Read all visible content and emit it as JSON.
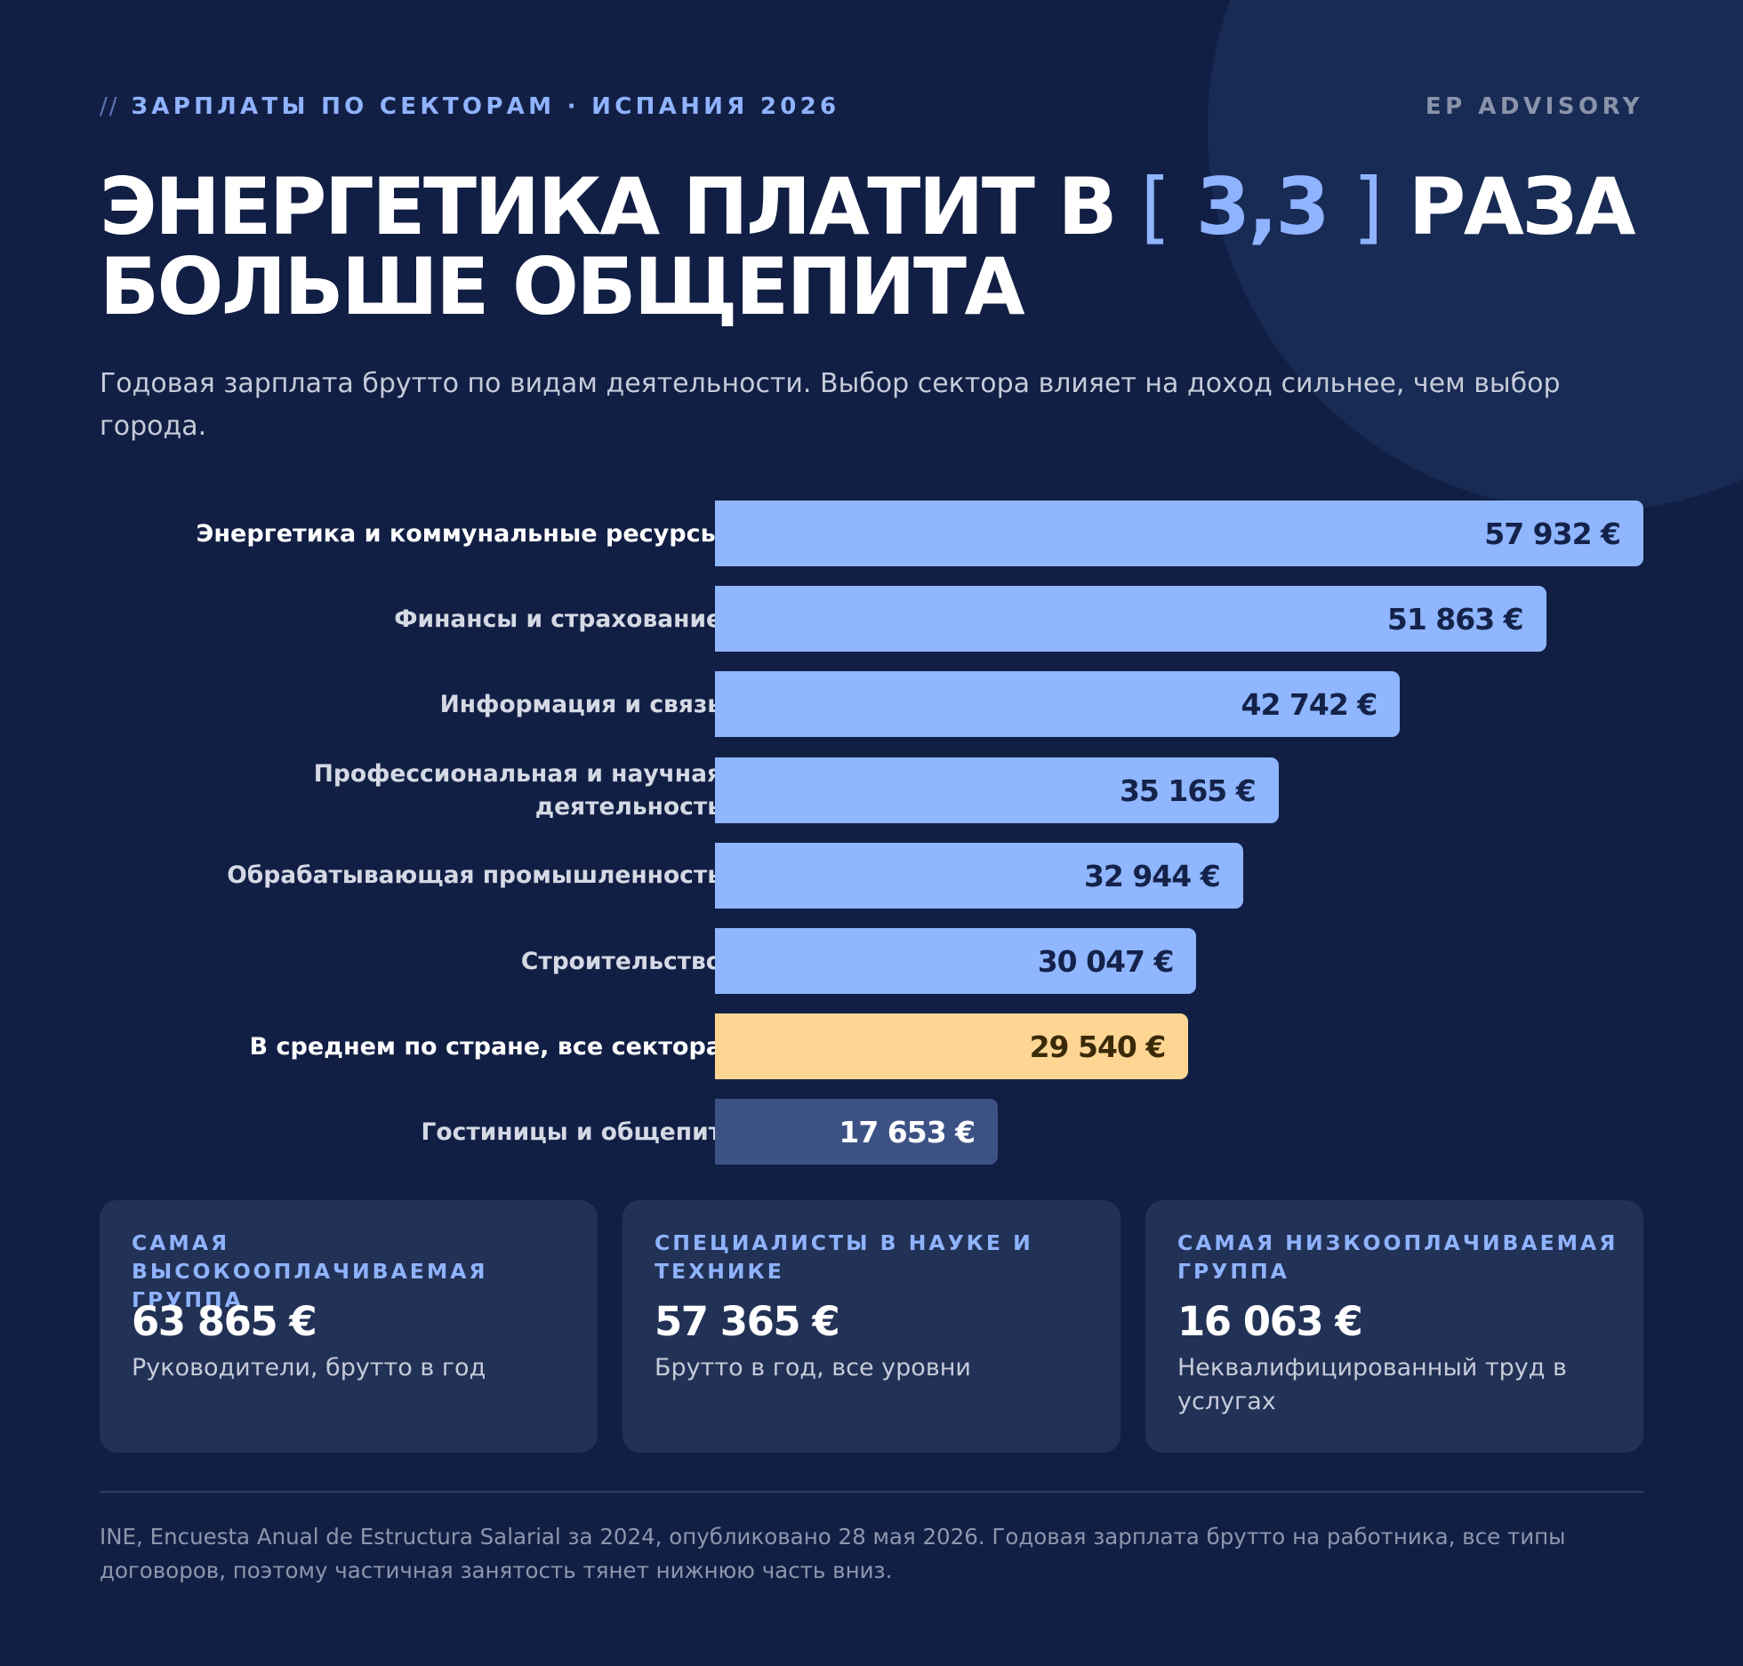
{
  "header": {
    "kicker_prefix": "//",
    "kicker": "ЗАРПЛАТЫ ПО СЕКТОРАМ · ИСПАНИЯ 2026",
    "brand": "EP ADVISORY"
  },
  "headline": {
    "part1": "ЭНЕРГЕТИКА ПЛАТИТ В",
    "bracket_open": "[",
    "highlight": "3,3",
    "bracket_close": "]",
    "part2": "РАЗА",
    "line2": "БОЛЬШЕ ОБЩЕПИТА"
  },
  "subtitle": "Годовая зарплата брутто по видам деятельности. Выбор сектора влияет на доход сильнее, чем выбор города.",
  "chart_data": {
    "type": "bar",
    "orientation": "horizontal",
    "categories": [
      "Энергетика и коммунальные ресурсы",
      "Финансы и страхование",
      "Информация и связь",
      "Профессиональная и научная деятельность",
      "Обрабатывающая промышленность",
      "Строительство",
      "В среднем по стране, все сектора",
      "Гостиницы и общепит"
    ],
    "values": [
      57932,
      51863,
      42742,
      35165,
      32944,
      30047,
      29540,
      17653
    ],
    "value_labels": [
      "57 932 €",
      "51 863 €",
      "42 742 €",
      "35 165 €",
      "32 944 €",
      "30 047 €",
      "29 540 €",
      "17 653 €"
    ],
    "xlim": [
      0,
      57932
    ],
    "grid": false,
    "colors": {
      "default": "#8fb6ff",
      "average": "#ffd594",
      "lowest": "#3c5285",
      "value_text_dark": "#14224a",
      "value_text_average": "#3a2a08",
      "value_text_light": "#ffffff"
    },
    "highlight_rows": [
      0,
      6
    ],
    "average_index": 6,
    "lowest_index": 7
  },
  "cards": [
    {
      "title": "САМАЯ ВЫСОКООПЛАЧИВАЕМАЯ ГРУППА",
      "value": "63 865 €",
      "desc": "Руководители, брутто в год"
    },
    {
      "title": "СПЕЦИАЛИСТЫ В НАУКЕ И ТЕХНИКЕ",
      "value": "57 365 €",
      "desc": "Брутто в год, все уровни"
    },
    {
      "title": "САМАЯ НИЗКООПЛАЧИВАЕМАЯ ГРУППА",
      "value": "16 063 €",
      "desc": "Неквалифицированный труд в услугах"
    }
  ],
  "footnote": "INE, Encuesta Anual de Estructura Salarial за 2024, опубликовано 28 мая 2026. Годовая зарплата брутто на работника, все типы договоров, поэтому частичная занятость тянет нижнюю часть вниз."
}
